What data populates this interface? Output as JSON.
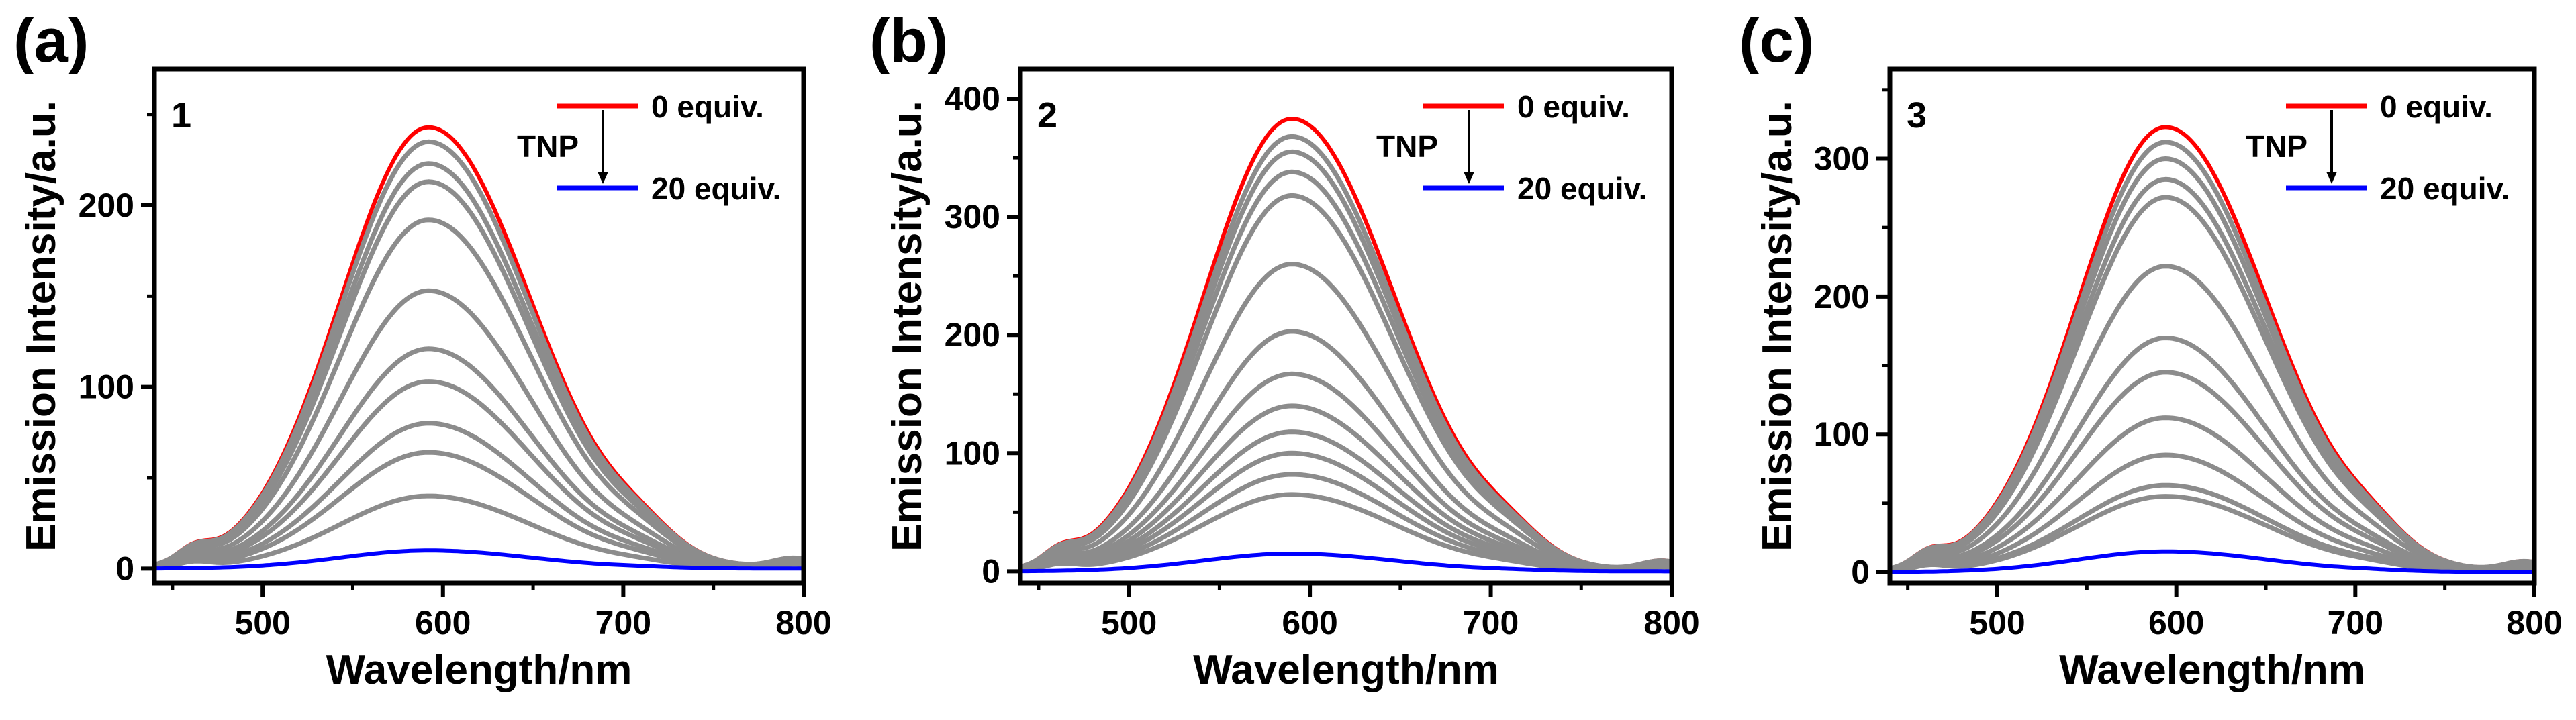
{
  "figure": {
    "panels_description": "Emission spectra titration panels"
  },
  "chart_data": [
    {
      "type": "line",
      "panel_label": "(a)",
      "sample_label": "1",
      "xlabel": "Wavelength/nm",
      "ylabel": "Emission Intensity/a.u.",
      "xlim": [
        440,
        800
      ],
      "ylim": [
        -8,
        275
      ],
      "xticks": [
        500,
        600,
        700,
        800
      ],
      "yticks": [
        0,
        100,
        200
      ],
      "legend": {
        "top": "0 equiv.",
        "bottom": "20 equiv.",
        "quencher": "TNP",
        "placement": "top-right"
      },
      "peak_wavelength": 592,
      "peaks": [
        243,
        235,
        223,
        213,
        192,
        153,
        121,
        103,
        80,
        64,
        40,
        10
      ],
      "colors": {
        "first": "#ff0000",
        "middle": "#8c8c8c",
        "last": "#0000ff"
      }
    },
    {
      "type": "line",
      "panel_label": "(b)",
      "sample_label": "2",
      "xlabel": "Wavelength/nm",
      "ylabel": "Emission Intensity/a.u.",
      "xlim": [
        440,
        800
      ],
      "ylim": [
        -10,
        425
      ],
      "xticks": [
        500,
        600,
        700,
        800
      ],
      "yticks": [
        0,
        100,
        200,
        300,
        400
      ],
      "legend": {
        "top": "0 equiv.",
        "bottom": "20 equiv.",
        "quencher": "TNP",
        "placement": "top-right"
      },
      "peak_wavelength": 590,
      "peaks": [
        383,
        368,
        355,
        338,
        318,
        260,
        203,
        167,
        140,
        118,
        100,
        82,
        65,
        15
      ],
      "colors": {
        "first": "#ff0000",
        "middle": "#8c8c8c",
        "last": "#0000ff"
      }
    },
    {
      "type": "line",
      "panel_label": "(c)",
      "sample_label": "3",
      "xlabel": "Wavelength/nm",
      "ylabel": "Emission Intensity/a.u.",
      "xlim": [
        440,
        800
      ],
      "ylim": [
        -8,
        365
      ],
      "xticks": [
        500,
        600,
        700,
        800
      ],
      "yticks": [
        0,
        100,
        200,
        300
      ],
      "legend": {
        "top": "0 equiv.",
        "bottom": "20 equiv.",
        "quencher": "TNP",
        "placement": "top-right"
      },
      "peak_wavelength": 594,
      "peaks": [
        323,
        312,
        300,
        285,
        272,
        222,
        170,
        145,
        112,
        85,
        63,
        55,
        15
      ],
      "colors": {
        "first": "#ff0000",
        "middle": "#8c8c8c",
        "last": "#0000ff"
      }
    }
  ]
}
